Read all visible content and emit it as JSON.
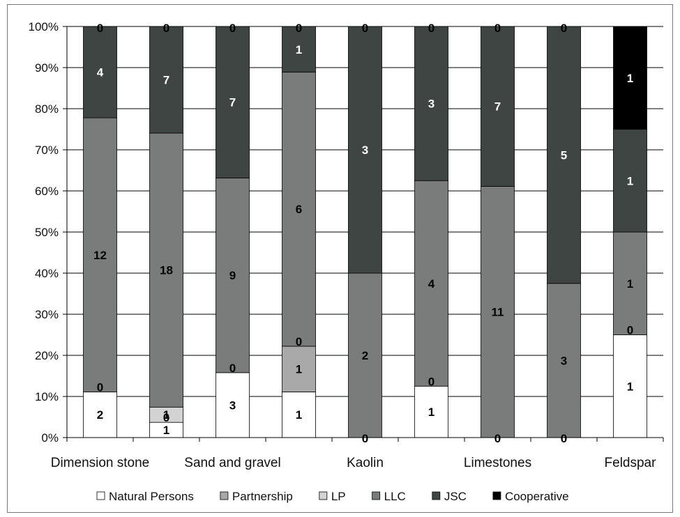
{
  "chart_data": {
    "type": "bar",
    "stacked": true,
    "percent": true,
    "title": "",
    "xlabel": "",
    "ylabel": "",
    "ylim": [
      0,
      100
    ],
    "yticks": [
      "0%",
      "10%",
      "20%",
      "30%",
      "40%",
      "50%",
      "60%",
      "70%",
      "80%",
      "90%",
      "100%"
    ],
    "categories": [
      "Dimension stone",
      "",
      "Sand and gravel",
      "",
      "Kaolin",
      "",
      "Limestones",
      "",
      "Feldspar"
    ],
    "x_labels_shown": [
      "Dimension stone",
      "Sand and gravel",
      "Kaolin",
      "Limestones",
      "Feldspar"
    ],
    "legend_position": "bottom",
    "grid": "horizontal",
    "series": [
      {
        "name": "Natural Persons",
        "color": "#ffffff",
        "label_color": "#000000",
        "values": [
          2,
          1,
          3,
          1,
          0,
          1,
          0,
          0,
          1
        ]
      },
      {
        "name": "Partnership",
        "color": "#a9a9a9",
        "label_color": "#000000",
        "values": [
          0,
          0,
          0,
          1,
          null,
          0,
          null,
          null,
          0
        ]
      },
      {
        "name": "LP",
        "color": "#d3d3d3",
        "label_color": "#000000",
        "values": [
          null,
          1,
          null,
          0,
          null,
          null,
          null,
          null,
          null
        ]
      },
      {
        "name": "LLC",
        "color": "#7a7c7b",
        "label_color": "#000000",
        "values": [
          12,
          18,
          9,
          6,
          2,
          4,
          11,
          3,
          1
        ]
      },
      {
        "name": "JSC",
        "color": "#3f4543",
        "label_color": "#ffffff",
        "values": [
          4,
          7,
          7,
          1,
          3,
          3,
          7,
          5,
          1
        ]
      },
      {
        "name": "Cooperative",
        "color": "#000000",
        "label_color": "#ffffff",
        "values": [
          0,
          0,
          0,
          0,
          0,
          0,
          0,
          0,
          1
        ]
      }
    ]
  }
}
